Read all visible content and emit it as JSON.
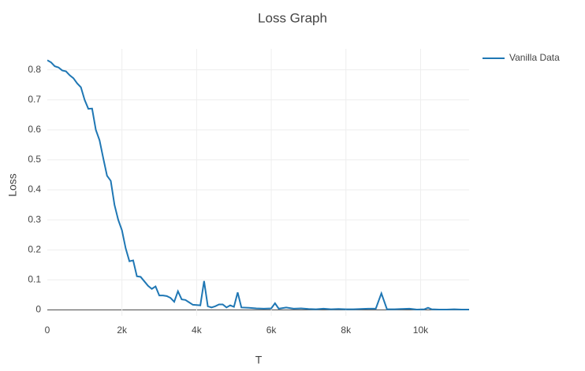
{
  "chart_data": {
    "type": "line",
    "title": "Loss Graph",
    "x_label": "T",
    "y_label": "Loss",
    "x": [
      0,
      100,
      200,
      300,
      400,
      500,
      600,
      700,
      800,
      900,
      1000,
      1100,
      1200,
      1300,
      1400,
      1500,
      1600,
      1700,
      1800,
      1900,
      2000,
      2100,
      2200,
      2300,
      2400,
      2500,
      2600,
      2700,
      2800,
      2900,
      3000,
      3100,
      3200,
      3300,
      3400,
      3500,
      3600,
      3700,
      3800,
      3900,
      4000,
      4100,
      4200,
      4300,
      4400,
      4500,
      4600,
      4700,
      4800,
      4900,
      5000,
      5100,
      5200,
      5400,
      5600,
      5800,
      6000,
      6100,
      6200,
      6400,
      6600,
      6800,
      7000,
      7200,
      7400,
      7600,
      7800,
      8000,
      8200,
      8400,
      8600,
      8800,
      8950,
      9100,
      9300,
      9500,
      9700,
      9900,
      10100,
      10200,
      10300,
      10500,
      10700,
      10900,
      11100,
      11300
    ],
    "series": [
      {
        "name": "Vanilla Data",
        "color": "#1f77b4",
        "values": [
          0.832,
          0.825,
          0.812,
          0.808,
          0.798,
          0.795,
          0.782,
          0.772,
          0.755,
          0.742,
          0.7,
          0.67,
          0.671,
          0.6,
          0.565,
          0.505,
          0.447,
          0.43,
          0.35,
          0.3,
          0.265,
          0.205,
          0.162,
          0.165,
          0.112,
          0.11,
          0.095,
          0.08,
          0.07,
          0.078,
          0.048,
          0.048,
          0.046,
          0.04,
          0.027,
          0.062,
          0.035,
          0.033,
          0.025,
          0.017,
          0.016,
          0.015,
          0.096,
          0.012,
          0.008,
          0.012,
          0.018,
          0.018,
          0.008,
          0.015,
          0.01,
          0.058,
          0.008,
          0.007,
          0.005,
          0.004,
          0.005,
          0.022,
          0.004,
          0.008,
          0.004,
          0.005,
          0.003,
          0.002,
          0.004,
          0.002,
          0.003,
          0.002,
          0.002,
          0.003,
          0.004,
          0.004,
          0.055,
          0.002,
          0.002,
          0.003,
          0.004,
          0.001,
          0.002,
          0.007,
          0.002,
          0.001,
          0.001,
          0.002,
          0.001,
          0.001
        ]
      }
    ],
    "xlim": [
      0,
      11300
    ],
    "ylim": [
      -0.02,
      0.87
    ],
    "xticks": [
      0,
      {
        "value": 2000,
        "label": "2k"
      },
      {
        "value": 4000,
        "label": "4k"
      },
      {
        "value": 6000,
        "label": "6k"
      },
      {
        "value": 8000,
        "label": "8k"
      },
      {
        "value": 10000,
        "label": "10k"
      }
    ],
    "yticks": [
      0,
      0.1,
      0.2,
      0.3,
      0.4,
      0.5,
      0.6,
      0.7,
      0.8
    ],
    "grid": true,
    "legend": "right"
  }
}
